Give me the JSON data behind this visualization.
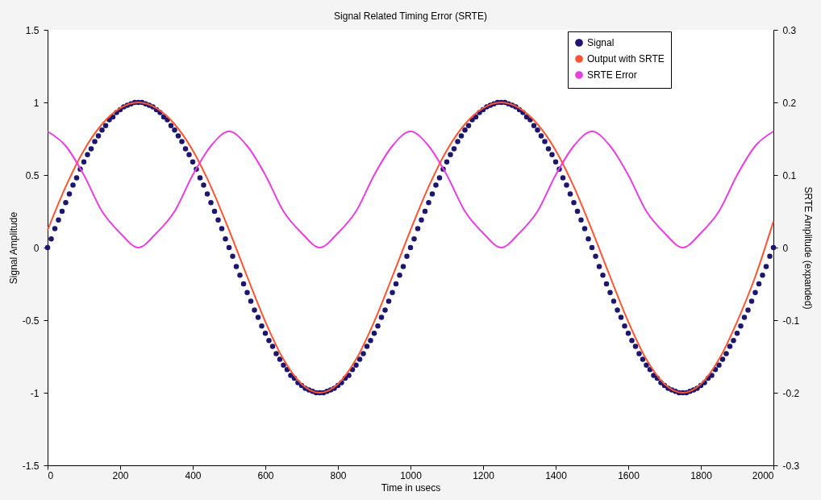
{
  "chart_data": {
    "type": "line",
    "title": "Signal Related Timing Error (SRTE)",
    "xlabel": "Time in usecs",
    "ylabel": "Signal Amplitude",
    "y2label": "SRTE Amplitude (expanded)",
    "xlim": [
      0,
      2000
    ],
    "xticks": [
      0,
      200,
      400,
      600,
      800,
      1000,
      1200,
      1400,
      1600,
      1800,
      2000
    ],
    "ylim": [
      -1.5,
      1.5
    ],
    "yticks": [
      -1.5,
      -1,
      -0.5,
      0,
      0.5,
      1,
      1.5
    ],
    "y2lim": [
      -0.3,
      0.3
    ],
    "y2ticks": [
      -0.3,
      -0.2,
      -0.1,
      0,
      0.1,
      0.2,
      0.3
    ],
    "legend": "top right",
    "series": [
      {
        "name": "Signal",
        "type": "scatter",
        "color": "#1c1670",
        "x": [
          0,
          10,
          20,
          30,
          40,
          50,
          60,
          70,
          80,
          90,
          100,
          110,
          120,
          130,
          140,
          150,
          160,
          170,
          180,
          190,
          200,
          210,
          220,
          230,
          240,
          250,
          260,
          270,
          280,
          290,
          300,
          310,
          320,
          330,
          340,
          350,
          360,
          370,
          380,
          390,
          400,
          410,
          420,
          430,
          440,
          450,
          460,
          470,
          480,
          490,
          500,
          510,
          520,
          530,
          540,
          550,
          560,
          570,
          580,
          590,
          600,
          610,
          620,
          630,
          640,
          650,
          660,
          670,
          680,
          690,
          700,
          710,
          720,
          730,
          740,
          750,
          760,
          770,
          780,
          790,
          800,
          810,
          820,
          830,
          840,
          850,
          860,
          870,
          880,
          890,
          900,
          910,
          920,
          930,
          940,
          950,
          960,
          970,
          980,
          990,
          1000,
          1010,
          1020,
          1030,
          1040,
          1050,
          1060,
          1070,
          1080,
          1090,
          1100,
          1110,
          1120,
          1130,
          1140,
          1150,
          1160,
          1170,
          1180,
          1190,
          1200,
          1210,
          1220,
          1230,
          1240,
          1250,
          1260,
          1270,
          1280,
          1290,
          1300,
          1310,
          1320,
          1330,
          1340,
          1350,
          1360,
          1370,
          1380,
          1390,
          1400,
          1410,
          1420,
          1430,
          1440,
          1450,
          1460,
          1470,
          1480,
          1490,
          1500,
          1510,
          1520,
          1530,
          1540,
          1550,
          1560,
          1570,
          1580,
          1590,
          1600,
          1610,
          1620,
          1630,
          1640,
          1650,
          1660,
          1670,
          1680,
          1690,
          1700,
          1710,
          1720,
          1730,
          1740,
          1750,
          1760,
          1770,
          1780,
          1790,
          1800,
          1810,
          1820,
          1830,
          1840,
          1850,
          1860,
          1870,
          1880,
          1890,
          1900,
          1910,
          1920,
          1930,
          1940,
          1950,
          1960,
          1970,
          1980,
          1990,
          2000
        ],
        "values": [
          0,
          0.06,
          0.13,
          0.19,
          0.25,
          0.31,
          0.37,
          0.43,
          0.48,
          0.54,
          0.59,
          0.64,
          0.68,
          0.73,
          0.77,
          0.81,
          0.84,
          0.88,
          0.9,
          0.93,
          0.95,
          0.97,
          0.98,
          0.99,
          1,
          1,
          1,
          0.99,
          0.98,
          0.97,
          0.95,
          0.93,
          0.9,
          0.88,
          0.84,
          0.81,
          0.77,
          0.73,
          0.68,
          0.64,
          0.59,
          0.54,
          0.48,
          0.43,
          0.37,
          0.31,
          0.25,
          0.19,
          0.13,
          0.06,
          0,
          -0.06,
          -0.13,
          -0.19,
          -0.25,
          -0.31,
          -0.37,
          -0.43,
          -0.48,
          -0.54,
          -0.59,
          -0.64,
          -0.68,
          -0.73,
          -0.77,
          -0.81,
          -0.84,
          -0.88,
          -0.9,
          -0.93,
          -0.95,
          -0.97,
          -0.98,
          -0.99,
          -1,
          -1,
          -1,
          -0.99,
          -0.98,
          -0.97,
          -0.95,
          -0.93,
          -0.9,
          -0.88,
          -0.84,
          -0.81,
          -0.77,
          -0.73,
          -0.68,
          -0.64,
          -0.59,
          -0.54,
          -0.48,
          -0.43,
          -0.37,
          -0.31,
          -0.25,
          -0.19,
          -0.13,
          -0.06,
          0,
          0.06,
          0.13,
          0.19,
          0.25,
          0.31,
          0.37,
          0.43,
          0.48,
          0.54,
          0.59,
          0.64,
          0.68,
          0.73,
          0.77,
          0.81,
          0.84,
          0.88,
          0.9,
          0.93,
          0.95,
          0.97,
          0.98,
          0.99,
          1,
          1,
          1,
          0.99,
          0.98,
          0.97,
          0.95,
          0.93,
          0.9,
          0.88,
          0.84,
          0.81,
          0.77,
          0.73,
          0.68,
          0.64,
          0.59,
          0.54,
          0.48,
          0.43,
          0.37,
          0.31,
          0.25,
          0.19,
          0.13,
          0.06,
          0,
          -0.06,
          -0.13,
          -0.19,
          -0.25,
          -0.31,
          -0.37,
          -0.43,
          -0.48,
          -0.54,
          -0.59,
          -0.64,
          -0.68,
          -0.73,
          -0.77,
          -0.81,
          -0.84,
          -0.88,
          -0.9,
          -0.93,
          -0.95,
          -0.97,
          -0.98,
          -0.99,
          -1,
          -1,
          -1,
          -0.99,
          -0.98,
          -0.97,
          -0.95,
          -0.93,
          -0.9,
          -0.88,
          -0.84,
          -0.81,
          -0.77,
          -0.73,
          -0.68,
          -0.64,
          -0.59,
          -0.54,
          -0.48,
          -0.43,
          -0.37,
          -0.31,
          -0.25,
          -0.19,
          -0.13,
          -0.06,
          0
        ]
      },
      {
        "name": "Output with SRTE",
        "color": "#ff5533",
        "x": [
          0,
          50,
          100,
          150,
          200,
          250,
          300,
          350,
          400,
          450,
          500,
          550,
          600,
          650,
          700,
          750,
          800,
          850,
          900,
          950,
          1000,
          1050,
          1100,
          1150,
          1200,
          1250,
          1300,
          1350,
          1400,
          1450,
          1500,
          1550,
          1600,
          1650,
          1700,
          1750,
          1800,
          1850,
          1900,
          1950,
          2000
        ],
        "values": [
          0.12,
          0.42,
          0.67,
          0.85,
          0.96,
          1,
          0.96,
          0.85,
          0.67,
          0.42,
          0.12,
          -0.2,
          -0.51,
          -0.77,
          -0.94,
          -1,
          -0.94,
          -0.77,
          -0.51,
          -0.2,
          0.12,
          0.42,
          0.67,
          0.85,
          0.96,
          1,
          0.96,
          0.85,
          0.67,
          0.42,
          0.12,
          -0.2,
          -0.51,
          -0.77,
          -0.94,
          -1,
          -0.94,
          -0.77,
          -0.51,
          -0.2,
          0.18
        ]
      },
      {
        "name": "SRTE Error",
        "axis": "y2",
        "color": "#e83fe0",
        "x": [
          0,
          50,
          100,
          150,
          200,
          250,
          300,
          350,
          400,
          450,
          500,
          550,
          600,
          650,
          700,
          750,
          800,
          850,
          900,
          950,
          1000,
          1050,
          1100,
          1150,
          1200,
          1250,
          1300,
          1350,
          1400,
          1450,
          1500,
          1550,
          1600,
          1650,
          1700,
          1750,
          1800,
          1850,
          1900,
          1950,
          2000
        ],
        "values": [
          0.16,
          0.14,
          0.1,
          0.05,
          0.02,
          0,
          0.02,
          0.05,
          0.1,
          0.14,
          0.16,
          0.14,
          0.1,
          0.05,
          0.02,
          0,
          0.02,
          0.05,
          0.1,
          0.14,
          0.16,
          0.14,
          0.1,
          0.05,
          0.02,
          0,
          0.02,
          0.05,
          0.1,
          0.14,
          0.16,
          0.14,
          0.1,
          0.05,
          0.02,
          0,
          0.02,
          0.05,
          0.1,
          0.14,
          0.16
        ]
      }
    ]
  }
}
